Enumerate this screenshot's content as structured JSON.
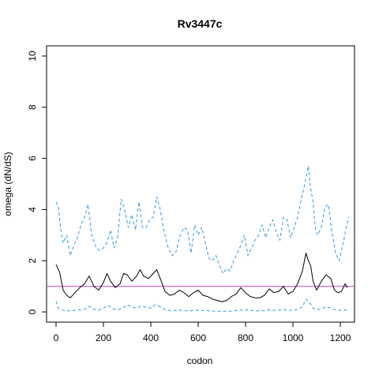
{
  "chart_data": {
    "type": "line",
    "title": "Rv3447c",
    "xlabel": "codon",
    "ylabel": "omega (dN/dS)",
    "xlim": [
      -40,
      1260
    ],
    "ylim": [
      -0.4,
      10.4
    ],
    "xticks": [
      0,
      200,
      400,
      600,
      800,
      1000,
      1200
    ],
    "yticks": [
      0,
      2,
      4,
      6,
      8,
      10
    ],
    "grid": false,
    "legend": "none",
    "reference_line": {
      "y": 1,
      "color": "#cc44cc"
    },
    "series": [
      {
        "style": "solid",
        "color": "#000000",
        "x": [
          0,
          15,
          30,
          45,
          60,
          80,
          100,
          120,
          140,
          160,
          180,
          200,
          215,
          230,
          250,
          270,
          285,
          300,
          320,
          340,
          355,
          370,
          390,
          410,
          425,
          440,
          460,
          480,
          500,
          520,
          540,
          560,
          580,
          600,
          620,
          640,
          660,
          680,
          700,
          720,
          740,
          760,
          780,
          800,
          820,
          840,
          860,
          880,
          900,
          920,
          940,
          960,
          980,
          1000,
          1020,
          1040,
          1055,
          1065,
          1075,
          1085,
          1100,
          1120,
          1140,
          1160,
          1175,
          1190,
          1205,
          1220,
          1230
        ],
        "y": [
          1.85,
          1.55,
          0.85,
          0.65,
          0.55,
          0.75,
          0.95,
          1.1,
          1.4,
          1.0,
          0.85,
          1.15,
          1.5,
          1.2,
          0.95,
          1.1,
          1.5,
          1.45,
          1.2,
          1.4,
          1.65,
          1.4,
          1.3,
          1.5,
          1.65,
          1.3,
          0.8,
          0.65,
          0.7,
          0.85,
          0.75,
          0.6,
          0.75,
          0.85,
          0.65,
          0.6,
          0.5,
          0.45,
          0.4,
          0.45,
          0.6,
          0.7,
          0.95,
          0.75,
          0.6,
          0.55,
          0.55,
          0.65,
          0.9,
          0.75,
          0.8,
          1.0,
          0.7,
          0.8,
          1.1,
          1.6,
          2.3,
          2.0,
          1.8,
          1.2,
          0.85,
          1.2,
          1.45,
          1.3,
          0.85,
          0.75,
          0.8,
          1.1,
          0.95
        ]
      },
      {
        "style": "dashed",
        "color": "#3399dd",
        "x": [
          0,
          10,
          20,
          30,
          45,
          60,
          75,
          90,
          105,
          120,
          135,
          150,
          170,
          185,
          200,
          215,
          230,
          245,
          260,
          275,
          290,
          305,
          320,
          335,
          350,
          365,
          380,
          395,
          410,
          425,
          440,
          455,
          470,
          490,
          505,
          520,
          540,
          555,
          570,
          585,
          600,
          615,
          630,
          645,
          660,
          675,
          690,
          705,
          720,
          735,
          750,
          765,
          780,
          795,
          810,
          825,
          840,
          855,
          870,
          885,
          900,
          915,
          930,
          945,
          960,
          975,
          990,
          1005,
          1020,
          1035,
          1050,
          1065,
          1075,
          1085,
          1095,
          1105,
          1120,
          1135,
          1150,
          1165,
          1180,
          1195,
          1210,
          1225,
          1235
        ],
        "y": [
          4.3,
          4.1,
          3.2,
          2.7,
          3.0,
          2.2,
          2.6,
          2.9,
          3.4,
          3.7,
          4.2,
          3.0,
          2.5,
          2.4,
          2.5,
          2.7,
          3.2,
          2.5,
          2.9,
          4.4,
          4.0,
          3.3,
          3.8,
          3.2,
          4.3,
          3.3,
          3.3,
          3.6,
          3.7,
          4.5,
          4.0,
          3.2,
          2.6,
          2.2,
          2.3,
          2.9,
          3.3,
          3.2,
          2.3,
          3.4,
          3.0,
          3.3,
          2.7,
          2.1,
          2.0,
          2.2,
          1.8,
          1.5,
          1.7,
          1.6,
          2.0,
          2.3,
          2.6,
          3.0,
          2.2,
          2.5,
          2.8,
          3.0,
          3.4,
          2.9,
          3.3,
          3.6,
          3.1,
          2.8,
          3.7,
          3.6,
          2.9,
          3.3,
          3.7,
          4.4,
          5.0,
          5.7,
          4.8,
          4.3,
          3.2,
          3.0,
          3.3,
          4.1,
          4.2,
          3.1,
          2.3,
          2.0,
          2.6,
          3.3,
          3.7
        ]
      },
      {
        "style": "dashed",
        "color": "#3399dd",
        "x": [
          0,
          10,
          20,
          40,
          60,
          80,
          100,
          120,
          140,
          160,
          180,
          200,
          220,
          240,
          260,
          280,
          300,
          320,
          340,
          360,
          380,
          400,
          420,
          440,
          460,
          480,
          500,
          520,
          540,
          560,
          580,
          600,
          620,
          640,
          660,
          680,
          700,
          720,
          740,
          760,
          780,
          800,
          820,
          840,
          860,
          880,
          900,
          920,
          940,
          960,
          980,
          1000,
          1020,
          1040,
          1055,
          1065,
          1075,
          1085,
          1100,
          1120,
          1140,
          1160,
          1180,
          1200,
          1220,
          1230
        ],
        "y": [
          0.42,
          0.15,
          0.08,
          0.05,
          0.04,
          0.06,
          0.08,
          0.1,
          0.22,
          0.1,
          0.07,
          0.15,
          0.25,
          0.12,
          0.08,
          0.14,
          0.28,
          0.2,
          0.14,
          0.24,
          0.18,
          0.15,
          0.28,
          0.2,
          0.08,
          0.05,
          0.05,
          0.07,
          0.06,
          0.04,
          0.05,
          0.07,
          0.05,
          0.05,
          0.03,
          0.03,
          0.02,
          0.02,
          0.03,
          0.05,
          0.07,
          0.09,
          0.06,
          0.04,
          0.04,
          0.05,
          0.08,
          0.06,
          0.07,
          0.1,
          0.06,
          0.07,
          0.1,
          0.2,
          0.5,
          0.38,
          0.3,
          0.15,
          0.08,
          0.12,
          0.2,
          0.15,
          0.07,
          0.06,
          0.08,
          0.06
        ]
      }
    ]
  }
}
